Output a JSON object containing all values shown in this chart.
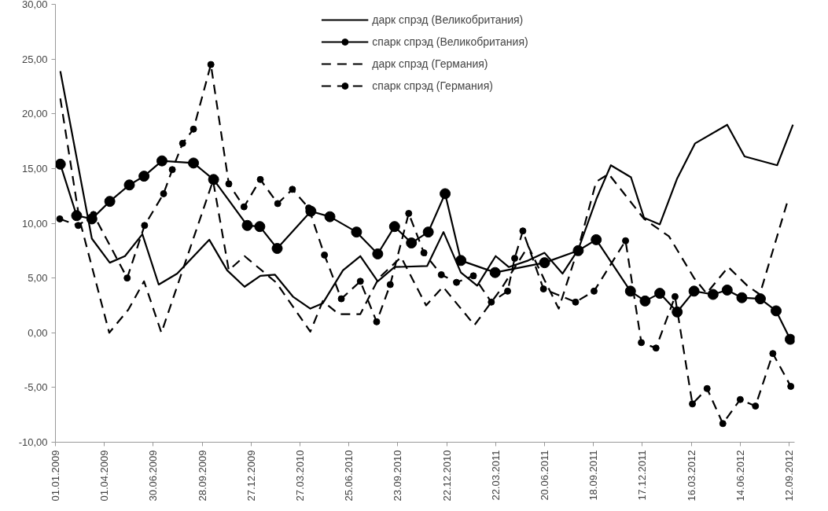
{
  "chart_data": {
    "type": "line",
    "legend": "top",
    "grid": false,
    "ylim": [
      -10,
      30
    ],
    "yticks": [
      {
        "value": -10,
        "label": "-10,00"
      },
      {
        "value": -5,
        "label": "-5,00"
      },
      {
        "value": 0,
        "label": "0,00"
      },
      {
        "value": 5,
        "label": "5,00"
      },
      {
        "value": 10,
        "label": "10,00"
      },
      {
        "value": 15,
        "label": "15,00"
      },
      {
        "value": 20,
        "label": "20,00"
      },
      {
        "value": 25,
        "label": "25,00"
      },
      {
        "value": 30,
        "label": "30,00"
      }
    ],
    "xlim": [
      "2009-01-01",
      "2012-09-22"
    ],
    "xticks": [
      {
        "value": "2009-01-01",
        "label": "01.01.2009"
      },
      {
        "value": "2009-04-01",
        "label": "01.04.2009"
      },
      {
        "value": "2009-06-30",
        "label": "30.06.2009"
      },
      {
        "value": "2009-09-28",
        "label": "28.09.2009"
      },
      {
        "value": "2009-12-27",
        "label": "27.12.2009"
      },
      {
        "value": "2010-03-27",
        "label": "27.03.2010"
      },
      {
        "value": "2010-06-25",
        "label": "25.06.2010"
      },
      {
        "value": "2010-09-23",
        "label": "23.09.2010"
      },
      {
        "value": "2010-12-22",
        "label": "22.12.2010"
      },
      {
        "value": "2011-03-22",
        "label": "22.03.2011"
      },
      {
        "value": "2011-06-20",
        "label": "20.06.2011"
      },
      {
        "value": "2011-09-18",
        "label": "18.09.2011"
      },
      {
        "value": "2011-12-17",
        "label": "17.12.2011"
      },
      {
        "value": "2012-03-16",
        "label": "16.03.2012"
      },
      {
        "value": "2012-06-14",
        "label": "14.06.2012"
      },
      {
        "value": "2012-09-12",
        "label": "12.09.2012"
      }
    ],
    "series": [
      {
        "name": "дарк спрэд (Великобритания)",
        "color": "#000000",
        "marker": "none",
        "line_style": "solid",
        "x": [
          "2009-01-10",
          "2009-03-09",
          "2009-04-11",
          "2009-05-09",
          "2009-06-10",
          "2009-07-10",
          "2009-08-13",
          "2009-10-11",
          "2009-11-13",
          "2009-12-15",
          "2010-01-13",
          "2010-02-09",
          "2010-03-14",
          "2010-04-15",
          "2010-05-08",
          "2010-06-14",
          "2010-07-16",
          "2010-08-17",
          "2010-09-17",
          "2010-11-16",
          "2010-12-16",
          "2011-01-17",
          "2011-02-16",
          "2011-03-22",
          "2011-04-15",
          "2011-05-21",
          "2011-06-20",
          "2011-07-23",
          "2011-08-21",
          "2011-09-24",
          "2011-10-20",
          "2011-11-26",
          "2011-12-20",
          "2012-01-18",
          "2012-02-19",
          "2012-03-23",
          "2012-05-21",
          "2012-06-22",
          "2012-08-21",
          "2012-09-19"
        ],
        "values": [
          23.9,
          8.6,
          6.4,
          7.0,
          9.0,
          4.4,
          5.4,
          8.5,
          5.7,
          4.2,
          5.2,
          5.3,
          3.3,
          2.2,
          2.7,
          5.7,
          7.0,
          4.7,
          6.0,
          6.1,
          9.2,
          5.5,
          4.3,
          7.0,
          6.0,
          6.6,
          7.3,
          5.4,
          7.6,
          12.3,
          15.3,
          14.2,
          10.5,
          9.9,
          14.1,
          17.3,
          19.0,
          16.1,
          15.3,
          19.0
        ]
      },
      {
        "name": "спарк спрэд (Великобритания)",
        "color": "#000000",
        "marker": "circle",
        "line_style": "solid",
        "x": [
          "2009-01-10",
          "2009-02-09",
          "2009-03-09",
          "2009-04-11",
          "2009-05-17",
          "2009-06-13",
          "2009-07-16",
          "2009-09-12",
          "2009-10-19",
          "2009-12-20",
          "2010-01-12",
          "2010-02-13",
          "2010-04-16",
          "2010-05-21",
          "2010-07-09",
          "2010-08-17",
          "2010-09-17",
          "2010-10-18",
          "2010-11-18",
          "2010-12-19",
          "2011-01-17",
          "2011-03-21",
          "2011-06-20",
          "2011-08-21",
          "2011-09-23",
          "2011-11-25",
          "2011-12-22",
          "2012-01-18",
          "2012-02-19",
          "2012-03-21",
          "2012-04-25",
          "2012-05-21",
          "2012-06-17",
          "2012-07-21",
          "2012-08-19",
          "2012-09-14"
        ],
        "values": [
          15.4,
          10.7,
          10.4,
          12.0,
          13.5,
          14.3,
          15.7,
          15.5,
          14.0,
          9.8,
          9.7,
          7.7,
          11.1,
          10.6,
          9.2,
          7.2,
          9.7,
          8.2,
          9.2,
          12.7,
          6.6,
          5.5,
          6.4,
          7.5,
          8.5,
          3.8,
          2.9,
          3.6,
          1.9,
          3.8,
          3.5,
          3.9,
          3.2,
          3.1,
          2.0,
          -0.6
        ]
      },
      {
        "name": "дарк спрэд (Германия)",
        "color": "#000000",
        "marker": "none",
        "line_style": "dashed",
        "x": [
          "2009-01-10",
          "2009-02-14",
          "2009-04-10",
          "2009-05-15",
          "2009-06-13",
          "2009-07-15",
          "2009-10-18",
          "2009-11-16",
          "2009-12-15",
          "2010-02-11",
          "2010-04-15",
          "2010-05-08",
          "2010-06-06",
          "2010-07-16",
          "2010-08-19",
          "2010-09-29",
          "2010-11-14",
          "2010-12-15",
          "2011-02-11",
          "2011-04-01",
          "2011-05-21",
          "2011-06-20",
          "2011-07-16",
          "2011-08-22",
          "2011-09-23",
          "2011-10-16",
          "2011-12-20",
          "2012-02-04",
          "2012-03-21",
          "2012-04-13",
          "2012-05-23",
          "2012-06-27",
          "2012-07-20",
          "2012-09-09"
        ],
        "values": [
          21.4,
          10.4,
          0.0,
          2.1,
          4.7,
          0.0,
          13.9,
          5.7,
          7.0,
          4.6,
          0.1,
          2.9,
          1.7,
          1.7,
          5.0,
          6.9,
          2.5,
          4.2,
          0.7,
          4.0,
          7.9,
          4.8,
          2.2,
          7.9,
          13.8,
          14.5,
          10.4,
          8.8,
          5.0,
          3.6,
          6.0,
          4.3,
          3.5,
          12.0
        ]
      },
      {
        "name": "спарк спрэд (Германия)",
        "color": "#000000",
        "marker": "circle",
        "line_style": "dashed",
        "x": [
          "2009-01-09",
          "2009-02-12",
          "2009-03-12",
          "2009-05-13",
          "2009-06-14",
          "2009-07-19",
          "2009-08-04",
          "2009-08-23",
          "2009-09-12",
          "2009-10-14",
          "2009-11-16",
          "2009-12-14",
          "2010-01-13",
          "2010-02-14",
          "2010-03-13",
          "2010-04-12",
          "2010-05-11",
          "2010-06-11",
          "2010-07-16",
          "2010-08-15",
          "2010-09-09",
          "2010-10-13",
          "2010-11-10",
          "2010-12-12",
          "2011-01-09",
          "2011-02-09",
          "2011-03-14",
          "2011-04-13",
          "2011-04-26",
          "2011-05-11",
          "2011-06-18",
          "2011-08-16",
          "2011-09-19",
          "2011-11-16",
          "2011-12-15",
          "2012-01-11",
          "2012-02-15",
          "2012-03-18",
          "2012-04-14",
          "2012-05-13",
          "2012-06-14",
          "2012-07-12",
          "2012-08-13",
          "2012-09-15"
        ],
        "values": [
          10.4,
          9.8,
          10.8,
          5.0,
          9.8,
          12.7,
          14.9,
          17.3,
          18.6,
          24.5,
          13.6,
          11.5,
          14.0,
          11.8,
          13.1,
          11.4,
          7.1,
          3.1,
          4.7,
          1.0,
          4.4,
          10.9,
          7.3,
          5.3,
          4.6,
          5.2,
          2.8,
          3.8,
          6.8,
          9.3,
          4.0,
          2.8,
          3.8,
          8.4,
          -0.9,
          -1.4,
          3.3,
          -6.5,
          -5.1,
          -8.3,
          -6.1,
          -6.7,
          -1.9,
          -4.9
        ]
      }
    ]
  }
}
